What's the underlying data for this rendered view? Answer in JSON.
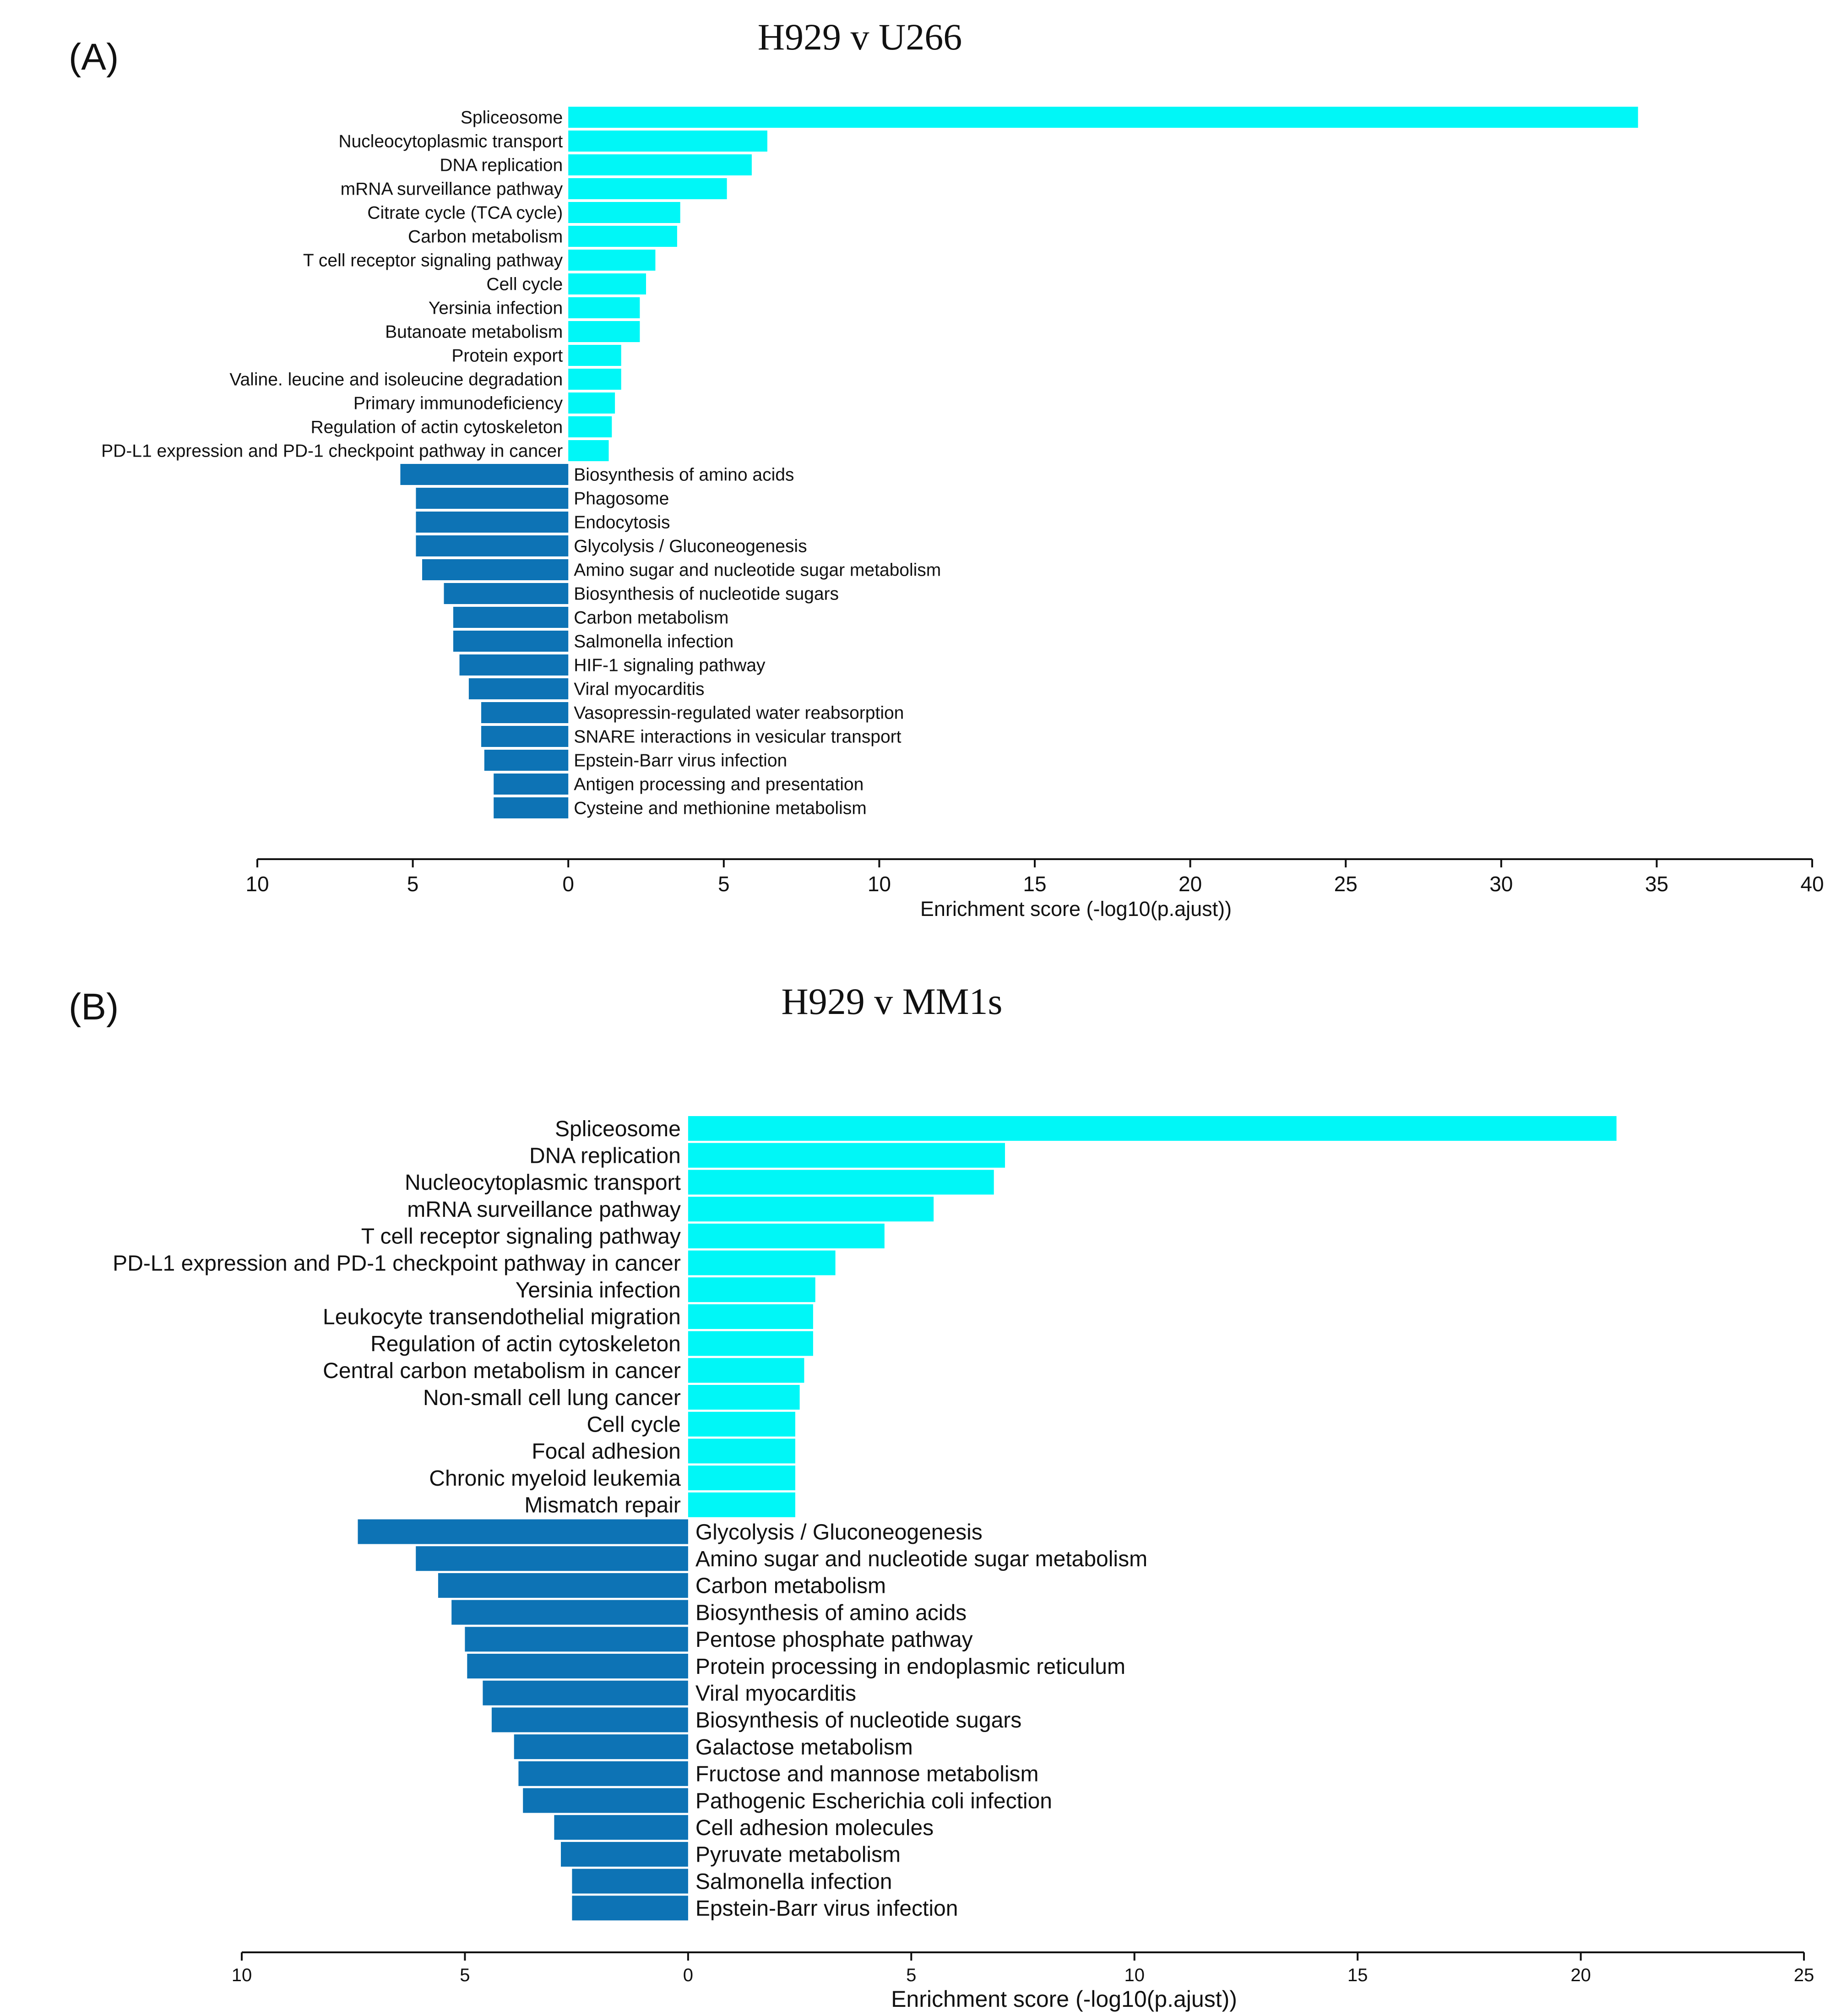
{
  "chart_data": [
    {
      "type": "bar",
      "orientation": "horizontal",
      "panel": "(A)",
      "title": "H929 v U266",
      "xlabel": "Enrichment score (-log10(p.ajust))",
      "ylabel": "",
      "xlim": [
        -10,
        40
      ],
      "xticks": [
        -10,
        -5,
        0,
        5,
        10,
        15,
        20,
        25,
        30,
        35,
        40
      ],
      "tick_labels": [
        "10",
        "5",
        "0",
        "5",
        "10",
        "15",
        "20",
        "25",
        "30",
        "35",
        "40"
      ],
      "legend": "none",
      "grid": false,
      "colors": {
        "up": "#00f7f7",
        "down": "#0d73b5"
      },
      "series": [
        {
          "name": "up",
          "categories": [
            "Spliceosome",
            "Nucleocytoplasmic transport",
            "DNA replication",
            "mRNA surveillance pathway",
            "Citrate cycle (TCA cycle)",
            "Carbon metabolism",
            "T cell receptor signaling pathway",
            "Cell cycle",
            "Yersinia infection",
            "Butanoate metabolism",
            "Protein export",
            "Valine. leucine and isoleucine degradation",
            "Primary immunodeficiency",
            "Regulation of actin cytoskeleton",
            "PD-L1 expression and PD-1 checkpoint pathway in cancer"
          ],
          "values": [
            34.4,
            6.4,
            5.9,
            5.1,
            3.6,
            3.5,
            2.8,
            2.5,
            2.3,
            2.3,
            1.7,
            1.7,
            1.5,
            1.4,
            1.3
          ]
        },
        {
          "name": "down",
          "categories": [
            "Biosynthesis of amino acids",
            "Phagosome",
            "Endocytosis",
            "Glycolysis / Gluconeogenesis",
            "Amino sugar and nucleotide sugar metabolism",
            "Biosynthesis of nucleotide sugars",
            "Carbon metabolism",
            "Salmonella infection",
            "HIF-1 signaling pathway",
            "Viral myocarditis",
            "Vasopressin-regulated water reabsorption",
            "SNARE interactions in vesicular transport",
            "Epstein-Barr virus infection",
            "Antigen processing and presentation",
            "Cysteine and methionine metabolism"
          ],
          "values": [
            5.4,
            4.9,
            4.9,
            4.9,
            4.7,
            4.0,
            3.7,
            3.7,
            3.5,
            3.2,
            2.8,
            2.8,
            2.7,
            2.4,
            2.4
          ]
        }
      ]
    },
    {
      "type": "bar",
      "orientation": "horizontal",
      "panel": "(B)",
      "title": "H929 v MM1s",
      "xlabel": "Enrichment score (-log10(p.ajust))",
      "ylabel": "",
      "xlim": [
        -10,
        25
      ],
      "xticks": [
        -10,
        -5,
        0,
        5,
        10,
        15,
        20,
        25
      ],
      "tick_labels": [
        "10",
        "5",
        "0",
        "5",
        "10",
        "15",
        "20",
        "25"
      ],
      "legend": "none",
      "grid": false,
      "colors": {
        "up": "#00f7f7",
        "down": "#0d73b5"
      },
      "series": [
        {
          "name": "up",
          "categories": [
            "Spliceosome",
            "DNA replication",
            "Nucleocytoplasmic transport",
            "mRNA surveillance pathway",
            "T cell receptor signaling pathway",
            "PD-L1 expression and PD-1 checkpoint pathway in cancer",
            "Yersinia infection",
            "Leukocyte transendothelial migration",
            "Regulation of actin cytoskeleton",
            "Central carbon metabolism in cancer",
            "Non-small cell lung cancer",
            "Cell cycle",
            "Focal adhesion",
            "Chronic myeloid leukemia",
            "Mismatch repair"
          ],
          "values": [
            20.8,
            7.1,
            6.85,
            5.5,
            4.4,
            3.3,
            2.85,
            2.8,
            2.8,
            2.6,
            2.5,
            2.4,
            2.4,
            2.4,
            2.4
          ]
        },
        {
          "name": "down",
          "categories": [
            "Glycolysis / Gluconeogenesis",
            "Amino sugar and nucleotide sugar metabolism",
            "Carbon metabolism",
            "Biosynthesis of amino acids",
            "Pentose phosphate pathway",
            "Protein processing in endoplasmic reticulum",
            "Viral myocarditis",
            "Biosynthesis of nucleotide sugars",
            "Galactose metabolism",
            "Fructose and mannose metabolism",
            "Pathogenic Escherichia coli infection",
            "Cell adhesion molecules",
            "Pyruvate metabolism",
            "Salmonella infection",
            "Epstein-Barr virus infection"
          ],
          "values": [
            7.4,
            6.1,
            5.6,
            5.3,
            5.0,
            4.95,
            4.6,
            4.4,
            3.9,
            3.8,
            3.7,
            3.0,
            2.85,
            2.6,
            2.6
          ]
        }
      ]
    }
  ]
}
